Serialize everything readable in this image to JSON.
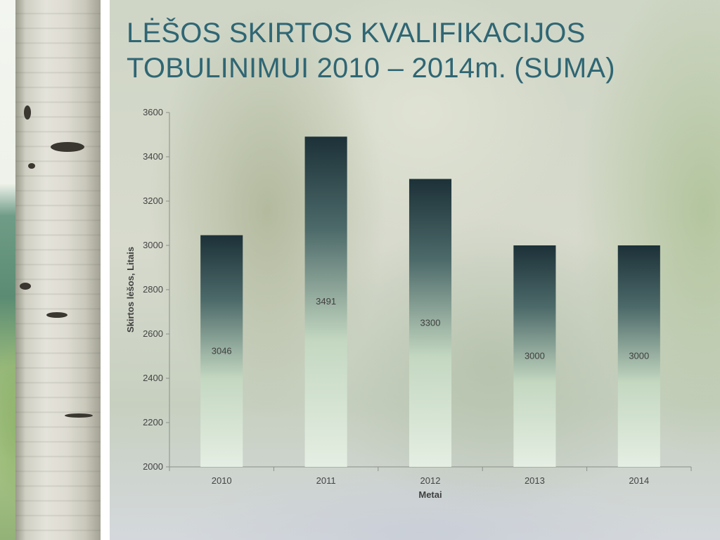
{
  "slide": {
    "title_lines": [
      "LĖŠOS SKIRTOS KVALIFIKACIJOS",
      "TOBULINIMUI 2010 – 2014m. (SUMA)"
    ]
  },
  "colors": {
    "title": "#2f6674",
    "bar_top": "#1c3138",
    "bar_bottom": "#e5eee3",
    "axis": "#8a8f8a"
  },
  "chart_data": {
    "type": "bar",
    "categories": [
      "2010",
      "2011",
      "2012",
      "2013",
      "2014"
    ],
    "series": [
      {
        "values": [
          3046,
          3491,
          3300,
          3000,
          3000
        ]
      }
    ],
    "data_labels": [
      "3046",
      "3491",
      "3300",
      "3000",
      "3000"
    ],
    "xlabel": "Metai",
    "ylabel": "Skirtos lėšos, Litais",
    "ylim": [
      2000,
      3600
    ],
    "yticks": [
      2000,
      2200,
      2400,
      2600,
      2800,
      3000,
      3200,
      3400,
      3600
    ],
    "grid": false,
    "legend": "none"
  }
}
